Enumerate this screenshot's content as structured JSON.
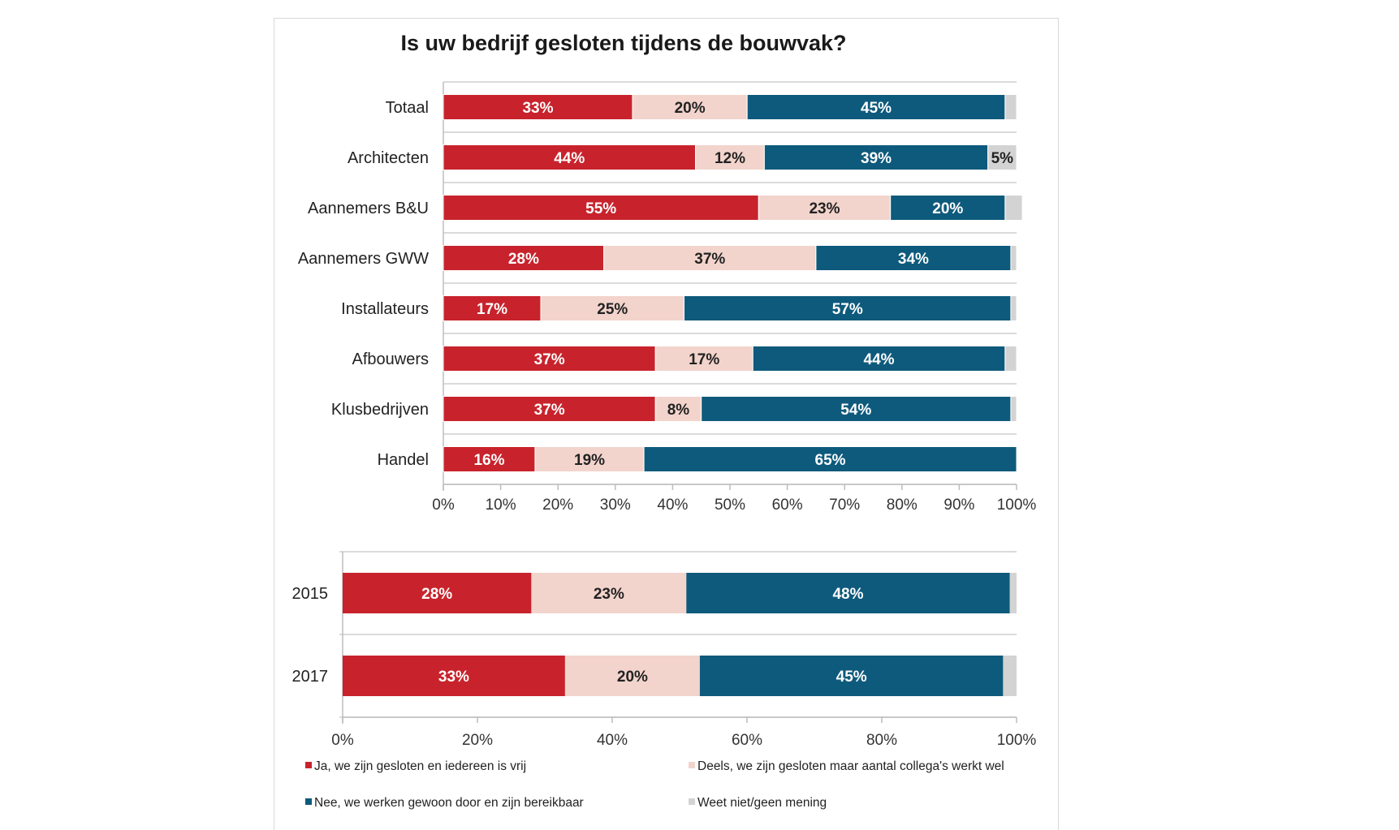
{
  "chart_data": [
    {
      "type": "bar",
      "orientation": "horizontal",
      "stacked": true,
      "title": "Is uw bedrijf gesloten tijdens de bouwvak?",
      "categories": [
        "Totaal",
        "Architecten",
        "Aannemers B&U",
        "Aannemers GWW",
        "Installateurs",
        "Afbouwers",
        "Klusbedrijven",
        "Handel"
      ],
      "series": [
        {
          "name": "Ja, we zijn gesloten en iedereen is vrij",
          "color": "#c8232c",
          "values": [
            33,
            44,
            55,
            28,
            17,
            37,
            37,
            16
          ],
          "labels": [
            "33%",
            "44%",
            "55%",
            "28%",
            "17%",
            "37%",
            "37%",
            "16%"
          ]
        },
        {
          "name": "Deels, we zijn gesloten maar aantal collega's werkt wel",
          "color": "#f2d4cc",
          "values": [
            20,
            12,
            23,
            37,
            25,
            17,
            8,
            19
          ],
          "labels": [
            "20%",
            "12%",
            "23%",
            "37%",
            "25%",
            "17%",
            "8%",
            "19%"
          ]
        },
        {
          "name": "Nee, we werken gewoon door en zijn bereikbaar",
          "color": "#0e5a7c",
          "values": [
            45,
            39,
            20,
            34,
            57,
            44,
            54,
            65
          ],
          "labels": [
            "45%",
            "39%",
            "20%",
            "34%",
            "57%",
            "44%",
            "54%",
            "65%"
          ]
        },
        {
          "name": "Weet niet/geen mening",
          "color": "#d3d3d3",
          "values": [
            2,
            5,
            3,
            1,
            1,
            2,
            1,
            0
          ],
          "labels": [
            "",
            "5%",
            "",
            "",
            "",
            "",
            "",
            ""
          ]
        }
      ],
      "xlim": [
        0,
        100
      ],
      "xticks": [
        "0%",
        "10%",
        "20%",
        "30%",
        "40%",
        "50%",
        "60%",
        "70%",
        "80%",
        "90%",
        "100%"
      ]
    },
    {
      "type": "bar",
      "orientation": "horizontal",
      "stacked": true,
      "categories": [
        "2015",
        "2017"
      ],
      "series": [
        {
          "name": "Ja, we zijn gesloten en iedereen is vrij",
          "color": "#c8232c",
          "values": [
            28,
            33
          ],
          "labels": [
            "28%",
            "33%"
          ]
        },
        {
          "name": "Deels, we zijn gesloten maar aantal collega's werkt wel",
          "color": "#f2d4cc",
          "values": [
            23,
            20
          ],
          "labels": [
            "23%",
            "20%"
          ]
        },
        {
          "name": "Nee, we werken gewoon door en zijn bereikbaar",
          "color": "#0e5a7c",
          "values": [
            48,
            45
          ],
          "labels": [
            "48%",
            "45%"
          ]
        },
        {
          "name": "Weet niet/geen mening",
          "color": "#d3d3d3",
          "values": [
            1,
            2
          ],
          "labels": [
            "",
            ""
          ]
        }
      ],
      "xlim": [
        0,
        100
      ],
      "xticks": [
        "0%",
        "20%",
        "40%",
        "60%",
        "80%",
        "100%"
      ]
    }
  ],
  "legend": [
    {
      "label": "Ja, we zijn gesloten en iedereen is vrij",
      "color": "#c8232c"
    },
    {
      "label": "Deels, we zijn gesloten maar aantal collega's werkt wel",
      "color": "#f2d4cc"
    },
    {
      "label": "Nee, we werken gewoon door en zijn bereikbaar",
      "color": "#0e5a7c"
    },
    {
      "label": "Weet niet/geen mening",
      "color": "#d3d3d3"
    }
  ]
}
